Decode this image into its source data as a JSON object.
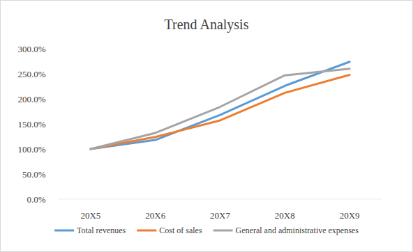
{
  "chart_data": {
    "type": "line",
    "title": "Trend Analysis",
    "categories": [
      "20X5",
      "20X6",
      "20X7",
      "20X8",
      "20X9"
    ],
    "series": [
      {
        "name": "Total revenues",
        "color": "#5b9bd5",
        "values": [
          100,
          118,
          168,
          226,
          274
        ]
      },
      {
        "name": "Cost of sales",
        "color": "#ed7d31",
        "values": [
          100,
          124,
          157,
          212,
          248
        ]
      },
      {
        "name": "General and administrative expenses",
        "color": "#a5a5a5",
        "values": [
          100,
          132,
          184,
          247,
          260
        ]
      }
    ],
    "ylim": [
      0,
      300
    ],
    "yticks": [
      {
        "value": 0,
        "label": "0.0%"
      },
      {
        "value": 50,
        "label": "50.0%"
      },
      {
        "value": 100,
        "label": "100.0%"
      },
      {
        "value": 150,
        "label": "150.0%"
      },
      {
        "value": 200,
        "label": "200.0%"
      },
      {
        "value": 250,
        "label": "250.0%"
      },
      {
        "value": 300,
        "label": "300.0%"
      }
    ],
    "grid": false,
    "legend": "bottom"
  }
}
